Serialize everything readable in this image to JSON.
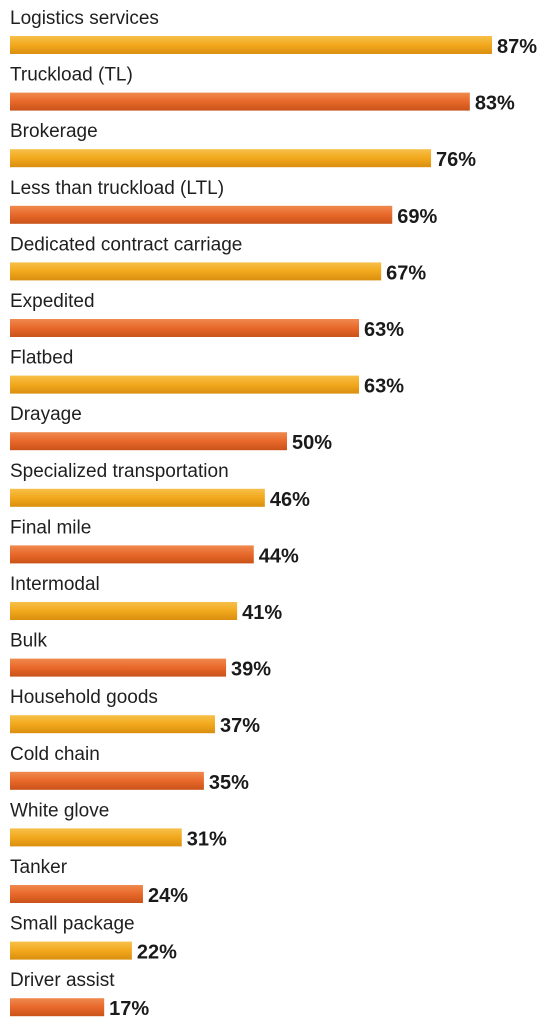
{
  "chart_data": {
    "type": "bar",
    "orientation": "horizontal",
    "title": "",
    "xlabel": "",
    "ylabel": "",
    "xlim": [
      0,
      100
    ],
    "grid": false,
    "legend": "none",
    "value_suffix": "%",
    "colors": [
      "#F2A81D",
      "#E8682A"
    ],
    "categories": [
      "Logistics services",
      "Truckload (TL)",
      "Brokerage",
      "Less than truckload (LTL)",
      "Dedicated contract carriage",
      "Expedited",
      "Flatbed",
      "Drayage",
      "Specialized transportation",
      "Final mile",
      "Intermodal",
      "Bulk",
      "Household goods",
      "Cold chain",
      "White glove",
      "Tanker",
      "Small package",
      "Driver assist"
    ],
    "values": [
      87,
      83,
      76,
      69,
      67,
      63,
      63,
      50,
      46,
      44,
      41,
      39,
      37,
      35,
      31,
      24,
      22,
      17
    ],
    "value_labels": [
      "87%",
      "83%",
      "76%",
      "69%",
      "67%",
      "63%",
      "63%",
      "50%",
      "46%",
      "44%",
      "41%",
      "39%",
      "37%",
      "35%",
      "31%",
      "24%",
      "22%",
      "17%"
    ]
  }
}
